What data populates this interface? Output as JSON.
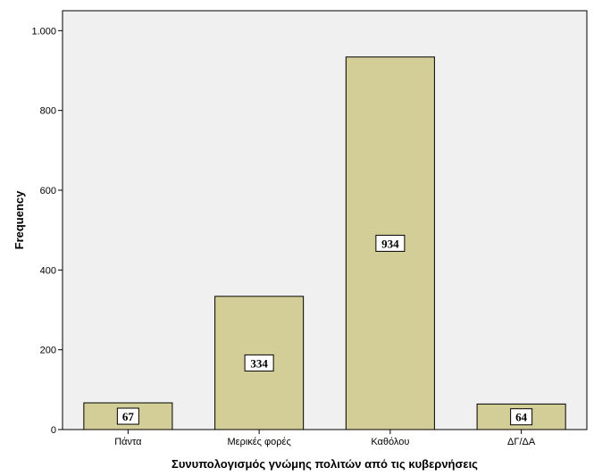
{
  "chart_data": {
    "type": "bar",
    "title": "",
    "xlabel": "Συνυπολογισμός γνώμης πολιτών από τις κυβερνήσεις",
    "ylabel": "Frequency",
    "categories": [
      "Πάντα",
      "Μερικές φορές",
      "Καθόλου",
      "ΔΓ/ΔΑ"
    ],
    "values": [
      67,
      334,
      934,
      64
    ],
    "data_labels": [
      "67",
      "334",
      "934",
      "64"
    ],
    "ylim": [
      0,
      1050
    ],
    "yticks": [
      0,
      200,
      400,
      600,
      800,
      1000
    ],
    "ytick_labels": [
      "0",
      "200",
      "400",
      "600",
      "800",
      "1.000"
    ],
    "grid": false,
    "legend": "none",
    "colors": {
      "bar_fill": "#d3ce97",
      "bar_stroke": "#000000",
      "plot_background": "#f0f0f0",
      "axis": "#000000"
    }
  }
}
